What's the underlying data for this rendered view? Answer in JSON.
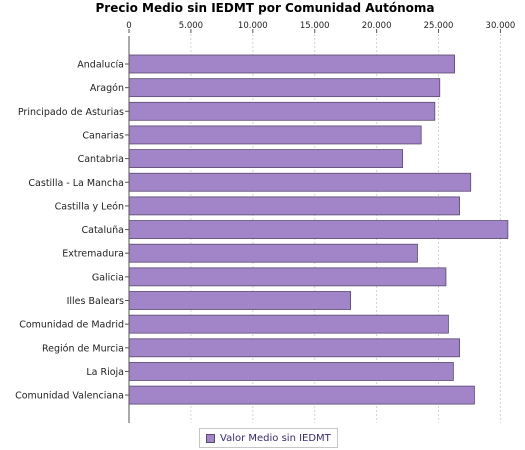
{
  "chart_data": {
    "type": "bar",
    "orientation": "horizontal",
    "title": "Precio Medio sin IEDMT por Comunidad Autónoma",
    "xlabel": "",
    "ylabel": "",
    "xlim": [
      0,
      31500
    ],
    "ticks": [
      {
        "value": 0,
        "label": "0"
      },
      {
        "value": 5000,
        "label": "5.000"
      },
      {
        "value": 10000,
        "label": "10.000"
      },
      {
        "value": 15000,
        "label": "15.000"
      },
      {
        "value": 20000,
        "label": "20.000"
      },
      {
        "value": 25000,
        "label": "25.000"
      },
      {
        "value": 30000,
        "label": "30.000"
      }
    ],
    "x_axis_position": "top",
    "grid": true,
    "legend_position": "bottom-center",
    "categories": [
      "Andalucía",
      "Aragón",
      "Principado de Asturias",
      "Canarias",
      "Cantabria",
      "Castilla - La Mancha",
      "Castilla y León",
      "Cataluña",
      "Extremadura",
      "Galicia",
      "Illes Balears",
      "Comunidad de Madrid",
      "Región de Murcia",
      "La Rioja",
      "Comunidad Valenciana"
    ],
    "series": [
      {
        "name": "Valor Medio sin IEDMT",
        "color": "#a284c9",
        "values": [
          26300,
          25100,
          24700,
          23600,
          22100,
          27600,
          26700,
          30600,
          23300,
          25600,
          17900,
          25800,
          26700,
          26200,
          27900
        ]
      }
    ]
  }
}
